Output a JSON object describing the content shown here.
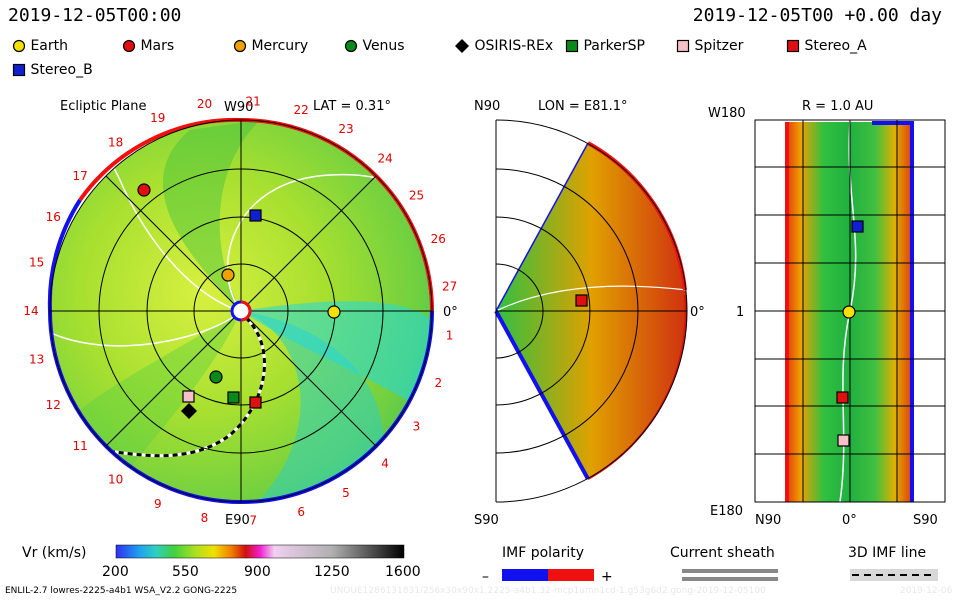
{
  "header": {
    "time_left": "2019-12-05T00:00",
    "time_right": "2019-12-05T00 +0.00 day"
  },
  "legend": [
    {
      "label": "Earth",
      "color": "#f5e000",
      "shape": "circle"
    },
    {
      "label": "Mars",
      "color": "#e01010",
      "shape": "circle"
    },
    {
      "label": "Mercury",
      "color": "#f0a000",
      "shape": "circle"
    },
    {
      "label": "Venus",
      "color": "#0a8a1a",
      "shape": "circle"
    },
    {
      "label": "OSIRIS-REx",
      "color": "#000000",
      "shape": "diamond"
    },
    {
      "label": "ParkerSP",
      "color": "#0a8a1a",
      "shape": "square"
    },
    {
      "label": "Spitzer",
      "color": "#f6c0c8",
      "shape": "square"
    },
    {
      "label": "Stereo_A",
      "color": "#e01010",
      "shape": "square"
    },
    {
      "label": "Stereo_B",
      "color": "#1020d0",
      "shape": "square"
    }
  ],
  "panel_ecliptic": {
    "title": "Ecliptic Plane",
    "top_label": "W90",
    "lat": "LAT = 0.31°",
    "bottom_label": "E90",
    "right_label": "0°",
    "carrington": [
      "20",
      "21",
      "22",
      "23",
      "24",
      "25",
      "26",
      "27",
      "1",
      "2",
      "3",
      "4",
      "5",
      "6",
      "7",
      "8",
      "9",
      "10",
      "11",
      "12",
      "13",
      "14",
      "15",
      "16",
      "17",
      "18",
      "19"
    ]
  },
  "panel_meridional": {
    "top_left": "N90",
    "lon": "LON = E81.1°",
    "bottom_left": "S90",
    "right_label": "0°"
  },
  "panel_latlon": {
    "r_label": "R = 1.0 AU",
    "y_top": "W180",
    "y_mid": "1",
    "y_bottom": "E180",
    "x_left": "N90",
    "x_mid": "0°",
    "x_right": "S90"
  },
  "colorbar": {
    "label": "Vr (km/s)",
    "ticks": [
      "200",
      "550",
      "900",
      "1250",
      "1600"
    ]
  },
  "imf": {
    "label": "IMF polarity",
    "minus": "–",
    "plus": "+",
    "neg_color": "#1010f0",
    "pos_color": "#f01010"
  },
  "sheath": {
    "label": "Current sheath"
  },
  "imf3d": {
    "label": "3D IMF line"
  },
  "footer": {
    "model": "ENLIL-2.7 lowres-2225-a4b1 WSA_V2.2 GONG-2225",
    "watermark": "UNOUE1286131831/256x30x90x1.2225-a4b1.32-mcp1umn1cd-1.g53g6d2.gong-2019-12-05100",
    "date_stamp": "2019-12-06"
  }
}
